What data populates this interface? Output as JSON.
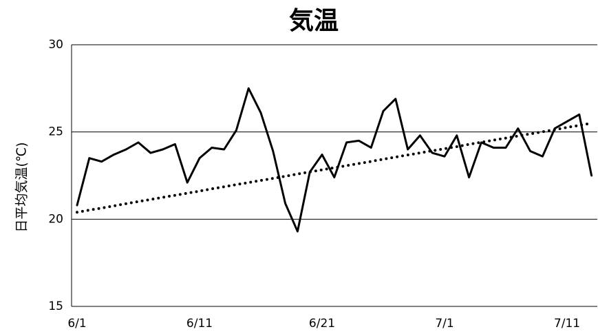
{
  "chart_data": {
    "type": "line",
    "title": "気温",
    "y_label": "日平均気温(℃)",
    "categories": [
      "6/1",
      null,
      null,
      null,
      null,
      null,
      null,
      null,
      null,
      null,
      "6/11",
      null,
      null,
      null,
      null,
      null,
      null,
      null,
      null,
      null,
      "6/21",
      null,
      null,
      null,
      null,
      null,
      null,
      null,
      null,
      null,
      "7/1",
      null,
      null,
      null,
      null,
      null,
      null,
      null,
      null,
      null,
      "7/11",
      null,
      null
    ],
    "series": [
      {
        "color": "#000000",
        "dash": "solid",
        "values": [
          20.8,
          23.5,
          23.3,
          23.7,
          24.0,
          24.4,
          23.8,
          24.0,
          24.3,
          22.1,
          23.5,
          24.1,
          24.0,
          25.1,
          27.5,
          26.1,
          23.9,
          20.9,
          19.3,
          22.7,
          23.7,
          22.4,
          24.4,
          24.5,
          24.1,
          26.2,
          26.9,
          24.0,
          24.8,
          23.8,
          23.6,
          24.8,
          22.4,
          24.4,
          24.1,
          24.1,
          25.2,
          23.9,
          23.6,
          25.2,
          25.6,
          26.0,
          22.5
        ]
      },
      {
        "color": "#000000",
        "dash": "dotted",
        "values": [
          20.4,
          20.52,
          20.64,
          20.76,
          20.89,
          21.01,
          21.13,
          21.25,
          21.37,
          21.49,
          21.61,
          21.74,
          21.86,
          21.98,
          22.1,
          22.22,
          22.34,
          22.46,
          22.59,
          22.71,
          22.83,
          22.95,
          23.07,
          23.19,
          23.31,
          23.44,
          23.56,
          23.68,
          23.8,
          23.92,
          24.04,
          24.16,
          24.29,
          24.41,
          24.53,
          24.65,
          24.77,
          24.89,
          25.01,
          25.13,
          25.26,
          25.38,
          25.5
        ]
      }
    ],
    "ylim": [
      15,
      30
    ],
    "yticks": [
      15,
      20,
      25,
      30
    ],
    "grid": true
  }
}
